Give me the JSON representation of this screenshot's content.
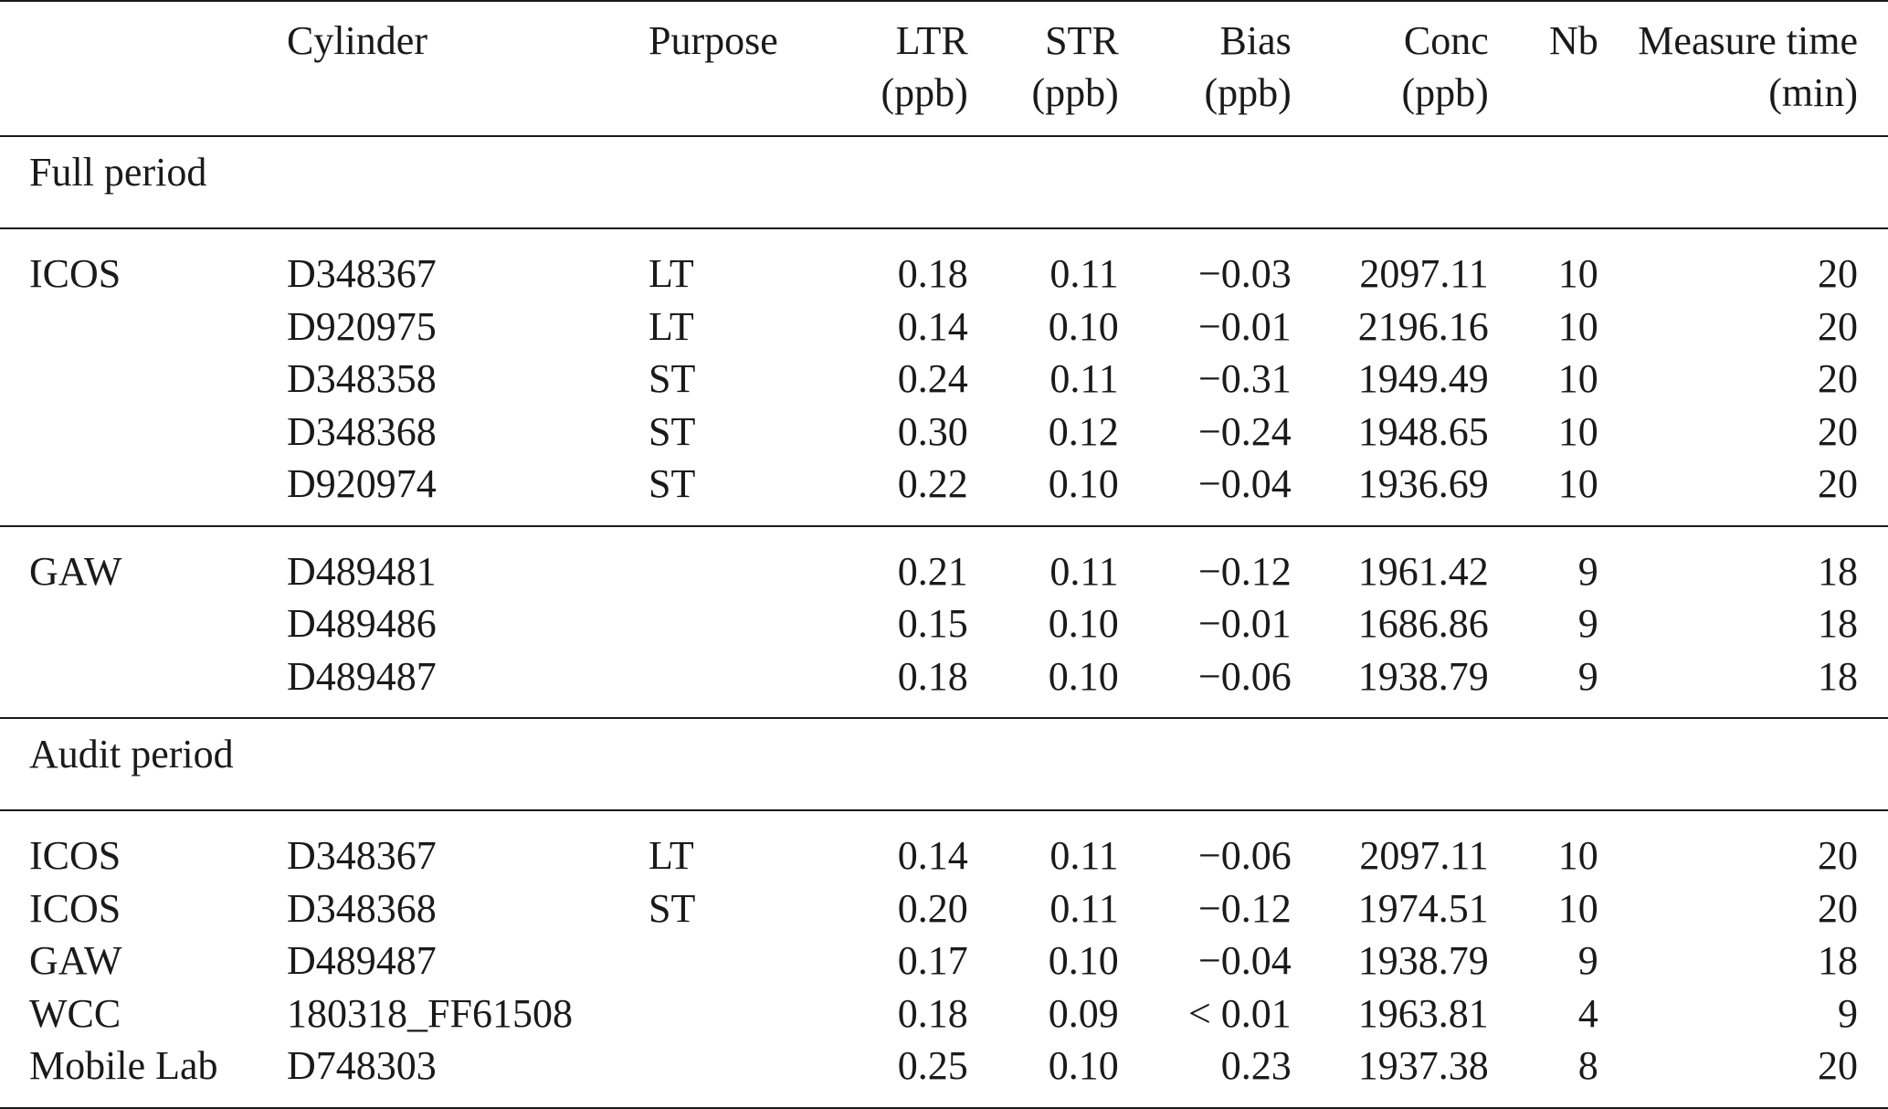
{
  "header": {
    "network": "",
    "cylinder": "Cylinder",
    "purpose": "Purpose",
    "ltr": [
      "LTR",
      "(ppb)"
    ],
    "str": [
      "STR",
      "(ppb)"
    ],
    "bias": [
      "Bias",
      "(ppb)"
    ],
    "conc": [
      "Conc",
      "(ppb)"
    ],
    "nb": "Nb",
    "time": [
      "Measure time",
      "(min)"
    ]
  },
  "sections": [
    {
      "title": "Full period",
      "groups": [
        {
          "rows": [
            {
              "network": "ICOS",
              "cylinder": "D348367",
              "purpose": "LT",
              "ltr": "0.18",
              "str": "0.11",
              "bias": "−0.03",
              "conc": "2097.11",
              "nb": "10",
              "time": "20"
            },
            {
              "network": "",
              "cylinder": "D920975",
              "purpose": "LT",
              "ltr": "0.14",
              "str": "0.10",
              "bias": "−0.01",
              "conc": "2196.16",
              "nb": "10",
              "time": "20"
            },
            {
              "network": "",
              "cylinder": "D348358",
              "purpose": "ST",
              "ltr": "0.24",
              "str": "0.11",
              "bias": "−0.31",
              "conc": "1949.49",
              "nb": "10",
              "time": "20"
            },
            {
              "network": "",
              "cylinder": "D348368",
              "purpose": "ST",
              "ltr": "0.30",
              "str": "0.12",
              "bias": "−0.24",
              "conc": "1948.65",
              "nb": "10",
              "time": "20"
            },
            {
              "network": "",
              "cylinder": "D920974",
              "purpose": "ST",
              "ltr": "0.22",
              "str": "0.10",
              "bias": "−0.04",
              "conc": "1936.69",
              "nb": "10",
              "time": "20"
            }
          ]
        },
        {
          "rows": [
            {
              "network": "GAW",
              "cylinder": "D489481",
              "purpose": "",
              "ltr": "0.21",
              "str": "0.11",
              "bias": "−0.12",
              "conc": "1961.42",
              "nb": "9",
              "time": "18"
            },
            {
              "network": "",
              "cylinder": "D489486",
              "purpose": "",
              "ltr": "0.15",
              "str": "0.10",
              "bias": "−0.01",
              "conc": "1686.86",
              "nb": "9",
              "time": "18"
            },
            {
              "network": "",
              "cylinder": "D489487",
              "purpose": "",
              "ltr": "0.18",
              "str": "0.10",
              "bias": "−0.06",
              "conc": "1938.79",
              "nb": "9",
              "time": "18"
            }
          ]
        }
      ]
    },
    {
      "title": "Audit period",
      "groups": [
        {
          "rows": [
            {
              "network": "ICOS",
              "cylinder": "D348367",
              "purpose": "LT",
              "ltr": "0.14",
              "str": "0.11",
              "bias": "−0.06",
              "conc": "2097.11",
              "nb": "10",
              "time": "20"
            },
            {
              "network": "ICOS",
              "cylinder": "D348368",
              "purpose": "ST",
              "ltr": "0.20",
              "str": "0.11",
              "bias": "−0.12",
              "conc": "1974.51",
              "nb": "10",
              "time": "20"
            },
            {
              "network": "GAW",
              "cylinder": "D489487",
              "purpose": "",
              "ltr": "0.17",
              "str": "0.10",
              "bias": "−0.04",
              "conc": "1938.79",
              "nb": "9",
              "time": "18"
            },
            {
              "network": "WCC",
              "cylinder": "180318_FF61508",
              "purpose": "",
              "ltr": "0.18",
              "str": "0.09",
              "bias": "< 0.01",
              "conc": "1963.81",
              "nb": "4",
              "time": "9"
            },
            {
              "network": "Mobile Lab",
              "cylinder": "D748303",
              "purpose": "",
              "ltr": "0.25",
              "str": "0.10",
              "bias": "0.23",
              "conc": "1937.38",
              "nb": "8",
              "time": "20"
            }
          ]
        }
      ]
    }
  ]
}
